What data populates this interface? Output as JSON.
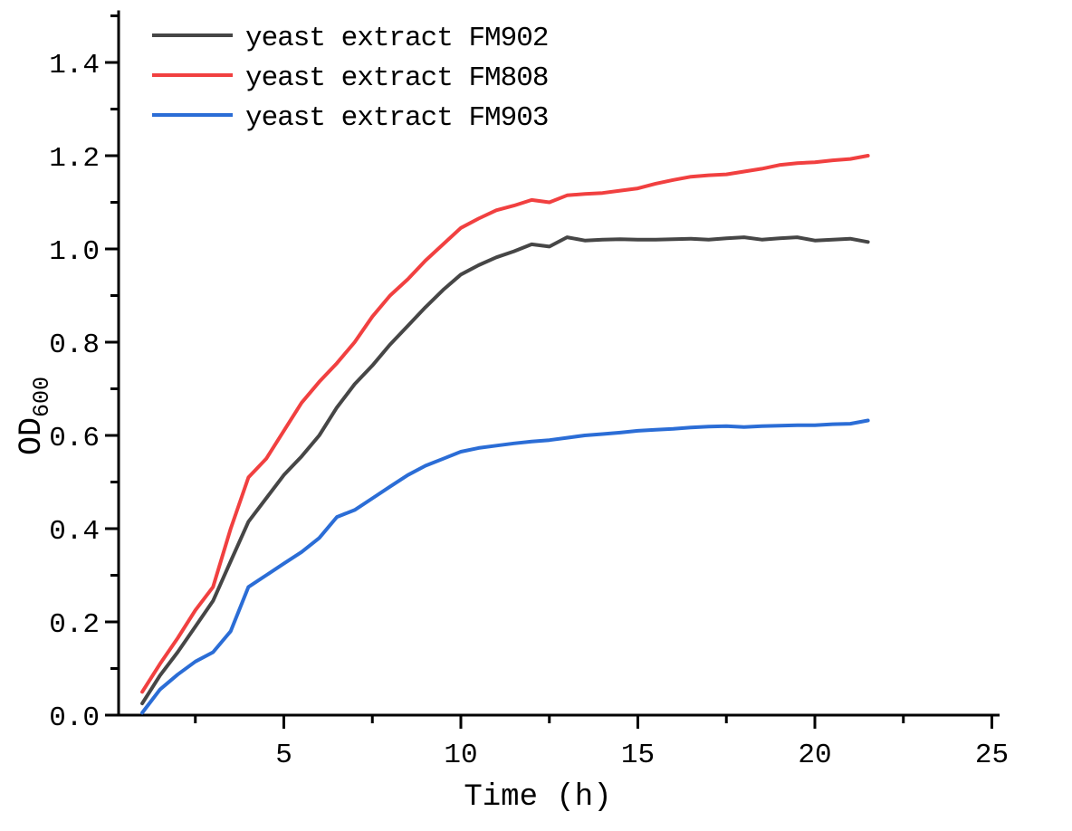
{
  "figure": {
    "background_color": "#ffffff",
    "axis_color": "#000000"
  },
  "chart_data": {
    "type": "line",
    "title": "",
    "xlabel": "Time (h)",
    "ylabel": "OD",
    "ylabel_subscript": "600",
    "xlim": [
      0.33,
      25.2
    ],
    "ylim": [
      0,
      1.51
    ],
    "grid": false,
    "legend_position": "top-left",
    "x_major_ticks": [
      5,
      10,
      15,
      20,
      25
    ],
    "x_tick_labels": [
      "5",
      "10",
      "15",
      "20",
      "25"
    ],
    "x_minor_ticks": [
      2.5,
      7.5,
      12.5,
      17.5,
      22.5
    ],
    "y_major_ticks": [
      0.0,
      0.2,
      0.4,
      0.6,
      0.8,
      1.0,
      1.2,
      1.4
    ],
    "y_tick_labels": [
      "0.0",
      "0.2",
      "0.4",
      "0.6",
      "0.8",
      "1.0",
      "1.2",
      "1.4"
    ],
    "y_minor_ticks": [
      0.1,
      0.3,
      0.5,
      0.7,
      0.9,
      1.1,
      1.3,
      1.5
    ],
    "x": [
      1,
      1.5,
      2,
      2.5,
      3,
      3.5,
      4,
      4.5,
      5,
      5.5,
      6,
      6.5,
      7,
      7.5,
      8,
      8.5,
      9,
      9.5,
      10,
      10.5,
      11,
      11.5,
      12,
      12.5,
      13,
      13.5,
      14,
      14.5,
      15,
      15.5,
      16,
      16.5,
      17,
      17.5,
      18,
      18.5,
      19,
      19.5,
      20,
      20.5,
      21,
      21.5
    ],
    "series": [
      {
        "name": "yeast extract FM902",
        "color": "#464646",
        "values": [
          0.025,
          0.085,
          0.135,
          0.19,
          0.245,
          0.33,
          0.415,
          0.465,
          0.515,
          0.555,
          0.6,
          0.66,
          0.71,
          0.75,
          0.795,
          0.835,
          0.875,
          0.912,
          0.945,
          0.965,
          0.982,
          0.995,
          1.01,
          1.005,
          1.025,
          1.018,
          1.02,
          1.021,
          1.02,
          1.02,
          1.021,
          1.022,
          1.02,
          1.023,
          1.025,
          1.02,
          1.023,
          1.025,
          1.018,
          1.02,
          1.022,
          1.015
        ]
      },
      {
        "name": "yeast extract FM808",
        "color": "#F14040",
        "values": [
          0.05,
          0.11,
          0.165,
          0.225,
          0.275,
          0.4,
          0.51,
          0.55,
          0.61,
          0.67,
          0.715,
          0.755,
          0.8,
          0.855,
          0.9,
          0.935,
          0.975,
          1.01,
          1.045,
          1.065,
          1.083,
          1.093,
          1.105,
          1.1,
          1.115,
          1.118,
          1.12,
          1.125,
          1.13,
          1.14,
          1.148,
          1.155,
          1.158,
          1.16,
          1.166,
          1.172,
          1.18,
          1.184,
          1.186,
          1.19,
          1.193,
          1.2
        ]
      },
      {
        "name": "yeast extract FM903",
        "color": "#2B6DD6",
        "values": [
          0.005,
          0.055,
          0.087,
          0.115,
          0.135,
          0.18,
          0.275,
          0.3,
          0.325,
          0.35,
          0.38,
          0.425,
          0.44,
          0.465,
          0.49,
          0.515,
          0.535,
          0.55,
          0.565,
          0.573,
          0.578,
          0.583,
          0.587,
          0.59,
          0.595,
          0.6,
          0.603,
          0.606,
          0.61,
          0.612,
          0.614,
          0.617,
          0.619,
          0.62,
          0.618,
          0.62,
          0.621,
          0.622,
          0.622,
          0.624,
          0.625,
          0.632
        ]
      }
    ]
  }
}
